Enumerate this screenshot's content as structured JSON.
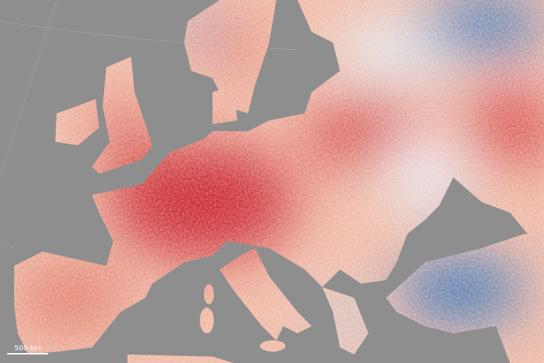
{
  "scale_bar": {
    "label": "500 km"
  }
}
